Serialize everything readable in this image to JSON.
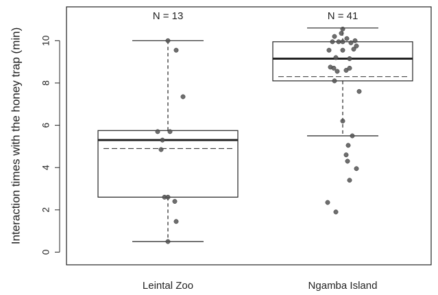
{
  "chart_data": {
    "type": "box",
    "ylabel": "Interaction times with the honey trap (min)",
    "xlabel": "",
    "ylim": [
      -0.6,
      11.6
    ],
    "yticks": [
      "0",
      "2",
      "4",
      "6",
      "8",
      "10"
    ],
    "grid": false,
    "legend": "none",
    "colors": {
      "box_fill": "#ffffff",
      "stroke": "#222222",
      "points": "#555555"
    },
    "categories": [
      "Leintal Zoo",
      "Ngamba Island"
    ],
    "boxes": [
      {
        "category": "Leintal Zoo",
        "n_label": "N = 13",
        "min": 0.5,
        "q1": 2.6,
        "median": 5.3,
        "mean": 4.9,
        "q3": 5.75,
        "max": 10.0,
        "points": [
          {
            "x": 0.0,
            "y": 10.0
          },
          {
            "x": 0.12,
            "y": 9.55
          },
          {
            "x": 0.22,
            "y": 7.35
          },
          {
            "x": 0.03,
            "y": 5.7
          },
          {
            "x": -0.15,
            "y": 5.7
          },
          {
            "x": -0.08,
            "y": 5.3
          },
          {
            "x": -0.1,
            "y": 4.85
          },
          {
            "x": -0.05,
            "y": 2.6
          },
          {
            "x": 0.0,
            "y": 2.6
          },
          {
            "x": 0.1,
            "y": 2.4
          },
          {
            "x": 0.12,
            "y": 1.45
          },
          {
            "x": 0.0,
            "y": 0.5
          }
        ]
      },
      {
        "category": "Ngamba Island",
        "n_label": "N = 41",
        "min": 5.5,
        "q1": 8.1,
        "median": 9.15,
        "mean": 8.3,
        "q3": 9.95,
        "max": 10.6,
        "points": [
          {
            "x": 0.0,
            "y": 10.55
          },
          {
            "x": -0.02,
            "y": 10.35
          },
          {
            "x": -0.12,
            "y": 10.2
          },
          {
            "x": 0.06,
            "y": 10.1
          },
          {
            "x": 0.18,
            "y": 10.0
          },
          {
            "x": -0.15,
            "y": 9.95
          },
          {
            "x": -0.06,
            "y": 9.95
          },
          {
            "x": 0.0,
            "y": 9.95
          },
          {
            "x": 0.12,
            "y": 9.9
          },
          {
            "x": 0.2,
            "y": 9.75
          },
          {
            "x": -0.2,
            "y": 9.55
          },
          {
            "x": 0.16,
            "y": 9.6
          },
          {
            "x": 0.0,
            "y": 9.55
          },
          {
            "x": -0.1,
            "y": 9.2
          },
          {
            "x": 0.1,
            "y": 9.15
          },
          {
            "x": -0.18,
            "y": 8.75
          },
          {
            "x": -0.13,
            "y": 8.7
          },
          {
            "x": 0.05,
            "y": 8.6
          },
          {
            "x": 0.1,
            "y": 8.7
          },
          {
            "x": -0.08,
            "y": 8.55
          },
          {
            "x": -0.12,
            "y": 8.1
          },
          {
            "x": 0.24,
            "y": 7.6
          },
          {
            "x": 0.0,
            "y": 6.2
          },
          {
            "x": 0.14,
            "y": 5.5
          },
          {
            "x": 0.08,
            "y": 5.05
          },
          {
            "x": 0.05,
            "y": 4.6
          },
          {
            "x": 0.07,
            "y": 4.3
          },
          {
            "x": 0.2,
            "y": 3.95
          },
          {
            "x": 0.1,
            "y": 3.4
          },
          {
            "x": -0.22,
            "y": 2.35
          },
          {
            "x": -0.1,
            "y": 1.9
          }
        ]
      }
    ]
  }
}
